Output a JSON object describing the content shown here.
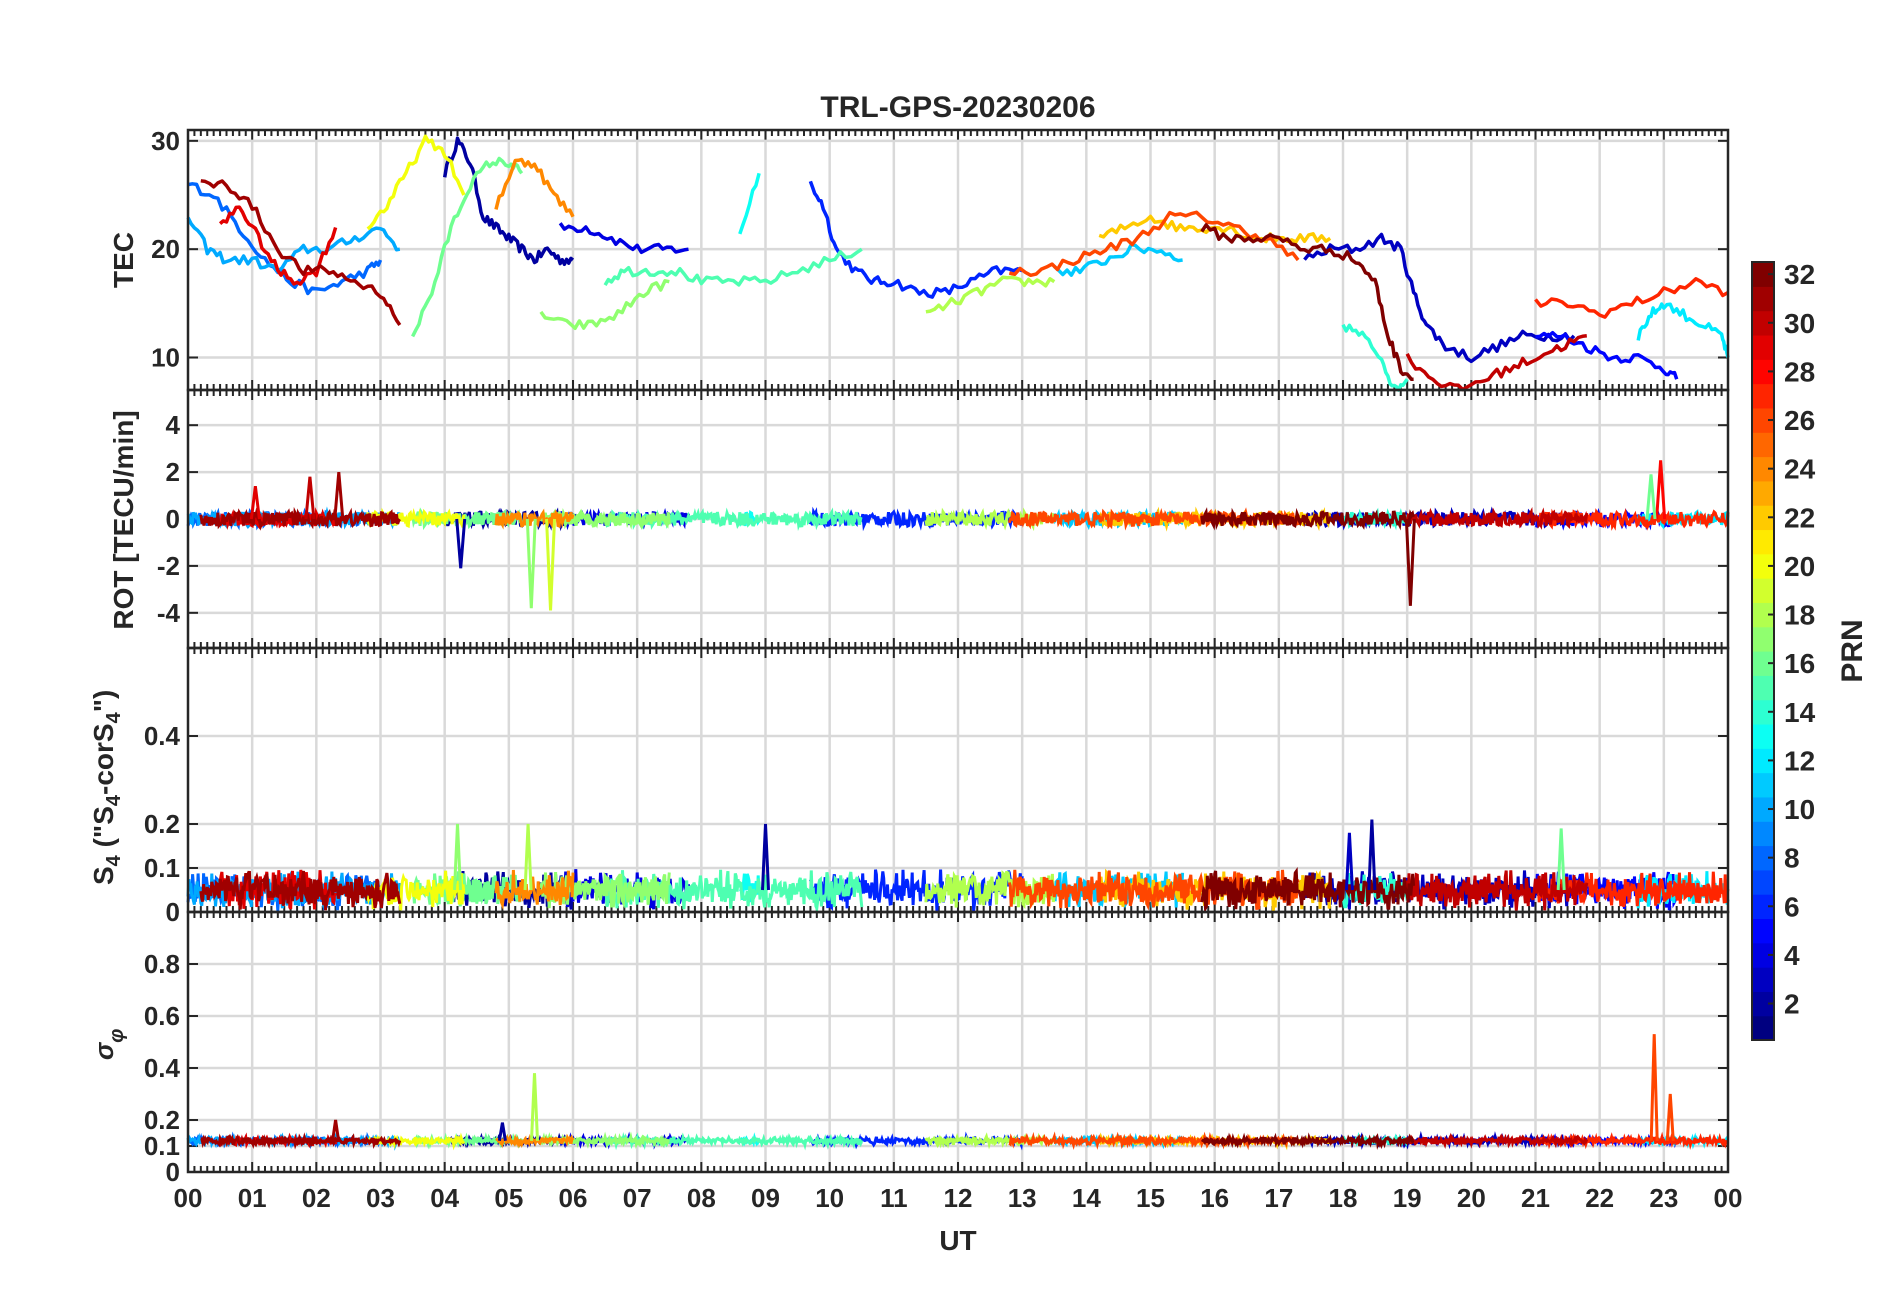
{
  "chart_data": [
    {
      "type": "line",
      "panel": "tec",
      "title": "TRL-GPS-20230206",
      "ylabel": "TEC",
      "ylim": [
        7,
        31
      ],
      "yticks": [
        10,
        20,
        30
      ],
      "xlim": [
        0,
        24
      ],
      "grid": true,
      "series": [
        {
          "prn": 2,
          "x": [
            4.0,
            4.2,
            4.4,
            4.6,
            4.8,
            5.0,
            5.2,
            5.4,
            5.6,
            5.8,
            6.0
          ],
          "y": [
            27,
            30,
            28,
            23,
            22,
            21,
            20,
            19,
            20,
            19,
            19
          ]
        },
        {
          "prn": 4,
          "x": [
            5.8,
            6.2,
            6.6,
            7.0,
            7.4,
            7.8
          ],
          "y": [
            22,
            22,
            21,
            20,
            20,
            20
          ]
        },
        {
          "prn": 6,
          "x": [
            9.7,
            9.9,
            10.1,
            10.4,
            10.7,
            11.0,
            11.4,
            11.8,
            12.2,
            12.6,
            13.0
          ],
          "y": [
            26,
            24,
            20,
            18,
            17,
            17,
            16,
            16,
            17,
            18,
            18
          ]
        },
        {
          "prn": 8,
          "x": [
            0.0,
            0.4,
            0.8,
            1.2,
            1.6,
            2.0,
            2.4,
            2.8,
            3.0
          ],
          "y": [
            26,
            25,
            22,
            19,
            17,
            16,
            17,
            18,
            19
          ]
        },
        {
          "prn": 3,
          "x": [
            17.4,
            17.8,
            18.2,
            18.6,
            18.9,
            19.1,
            19.3,
            19.6,
            20.0,
            20.4,
            20.8,
            21.2,
            21.6
          ],
          "y": [
            19,
            20,
            20,
            21,
            20,
            16,
            13,
            11,
            10,
            11,
            12,
            12,
            12
          ]
        },
        {
          "prn": 5,
          "x": [
            21.0,
            21.4,
            21.8,
            22.2,
            22.6,
            23.0,
            23.2
          ],
          "y": [
            12,
            12,
            11,
            10,
            10,
            9,
            8
          ]
        },
        {
          "prn": 10,
          "x": [
            0.0,
            0.3,
            0.6,
            1.0,
            1.4,
            1.8,
            2.2,
            2.6,
            3.0,
            3.3
          ],
          "y": [
            23,
            20,
            19,
            19,
            18,
            20,
            20,
            21,
            22,
            20
          ]
        },
        {
          "prn": 11,
          "x": [
            13.5,
            13.9,
            14.3,
            14.7,
            15.1,
            15.5
          ],
          "y": [
            18,
            18,
            19,
            20,
            20,
            19
          ]
        },
        {
          "prn": 12,
          "x": [
            22.6,
            22.8,
            23.0,
            23.3,
            23.6,
            23.9,
            24.0
          ],
          "y": [
            12,
            14,
            15,
            14,
            13,
            12,
            10
          ]
        },
        {
          "prn": 13,
          "x": [
            8.6,
            8.9
          ],
          "y": [
            21,
            27
          ]
        },
        {
          "prn": 14,
          "x": [
            18.0,
            18.3,
            18.6,
            18.8,
            19.0
          ],
          "y": [
            13,
            12,
            10,
            7,
            8
          ]
        },
        {
          "prn": 15,
          "x": [
            6.5,
            6.8,
            7.2,
            7.6,
            8.0,
            8.5,
            9.0,
            9.5,
            10.0,
            10.5
          ],
          "y": [
            17,
            18,
            18,
            18,
            17,
            17,
            17,
            18,
            19,
            20
          ]
        },
        {
          "prn": 16,
          "x": [
            3.5,
            3.8,
            4.1,
            4.4,
            4.7,
            5.0,
            5.2
          ],
          "y": [
            12,
            16,
            22,
            26,
            28,
            28,
            27
          ]
        },
        {
          "prn": 17,
          "x": [
            5.5,
            5.9,
            6.3,
            6.7,
            7.1,
            7.5
          ],
          "y": [
            14,
            13,
            13,
            14,
            16,
            17
          ]
        },
        {
          "prn": 18,
          "x": [
            11.5,
            11.9,
            12.3,
            12.7,
            13.1,
            13.5
          ],
          "y": [
            14,
            15,
            16,
            17,
            17,
            17
          ]
        },
        {
          "prn": 20,
          "x": [
            2.8,
            3.1,
            3.4,
            3.7,
            4.0,
            4.3
          ],
          "y": [
            22,
            24,
            27,
            30,
            29,
            25
          ]
        },
        {
          "prn": 22,
          "x": [
            14.2,
            14.6,
            15.0,
            15.4,
            15.8,
            16.2,
            16.6,
            17.0,
            17.4,
            17.8
          ],
          "y": [
            21,
            22,
            23,
            22,
            22,
            22,
            21,
            21,
            21,
            21
          ]
        },
        {
          "prn": 24,
          "x": [
            4.8,
            5.1,
            5.4,
            5.7,
            6.0
          ],
          "y": [
            24,
            28,
            28,
            25,
            23
          ]
        },
        {
          "prn": 26,
          "x": [
            12.8,
            13.3,
            13.8,
            14.3,
            14.8,
            15.3,
            15.8,
            16.3,
            16.8,
            17.3
          ],
          "y": [
            18,
            18,
            19,
            20,
            21,
            23,
            23,
            22,
            21,
            19
          ]
        },
        {
          "prn": 27,
          "x": [
            21.0,
            21.5,
            22.0,
            22.5,
            23.0,
            23.5,
            24.0
          ],
          "y": [
            15,
            15,
            14,
            15,
            16,
            17,
            16
          ]
        },
        {
          "prn": 29,
          "x": [
            0.5,
            0.8,
            1.1,
            1.4,
            1.7,
            2.0,
            2.3
          ],
          "y": [
            22,
            24,
            21,
            18,
            17,
            18,
            22
          ]
        },
        {
          "prn": 30,
          "x": [
            19.0,
            19.4,
            19.8,
            20.2,
            20.6,
            21.0,
            21.4,
            21.8
          ],
          "y": [
            10,
            8,
            7,
            8,
            9,
            10,
            11,
            12
          ]
        },
        {
          "prn": 31,
          "x": [
            0.2,
            0.6,
            1.0,
            1.4,
            1.8,
            2.2,
            2.6,
            3.0,
            3.3
          ],
          "y": [
            26,
            26,
            24,
            20,
            18,
            18,
            17,
            16,
            13
          ]
        },
        {
          "prn": 32,
          "x": [
            15.8,
            16.2,
            16.6,
            17.0,
            17.4,
            17.8,
            18.2,
            18.5,
            18.7,
            18.9,
            19.1
          ],
          "y": [
            22,
            21,
            21,
            21,
            20,
            20,
            19,
            17,
            12,
            9,
            8
          ]
        }
      ]
    },
    {
      "type": "line",
      "panel": "rot",
      "ylabel": "ROT [TECU/min]",
      "ylim": [
        -5.5,
        5.5
      ],
      "yticks": [
        -4,
        -2,
        0,
        2,
        4
      ],
      "xlim": [
        0,
        24
      ],
      "grid": true,
      "noise_level": 0.3,
      "spikes": [
        {
          "prn": 30,
          "x": 1.9,
          "y": 1.8
        },
        {
          "prn": 31,
          "x": 2.35,
          "y": 2.0
        },
        {
          "prn": 17,
          "x": 5.35,
          "y": -3.8
        },
        {
          "prn": 19,
          "x": 5.65,
          "y": -3.9
        },
        {
          "prn": 2,
          "x": 4.25,
          "y": -2.1
        },
        {
          "prn": 32,
          "x": 19.05,
          "y": -3.7
        },
        {
          "prn": 28,
          "x": 22.95,
          "y": 2.5
        },
        {
          "prn": 16,
          "x": 22.8,
          "y": 1.9
        },
        {
          "prn": 29,
          "x": 1.05,
          "y": 1.4
        }
      ]
    },
    {
      "type": "line",
      "panel": "s4",
      "ylabel": "S4 (\"S4-corS4\")",
      "ylim": [
        0,
        0.6
      ],
      "yticks": [
        0,
        0.1,
        0.2,
        0.4
      ],
      "xlim": [
        0,
        24
      ],
      "grid": true,
      "baseline": 0.05,
      "spikes": [
        {
          "prn": 17,
          "x": 4.2,
          "y": 0.2
        },
        {
          "prn": 18,
          "x": 5.3,
          "y": 0.2
        },
        {
          "prn": 2,
          "x": 9.0,
          "y": 0.2
        },
        {
          "prn": 2,
          "x": 18.45,
          "y": 0.21
        },
        {
          "prn": 3,
          "x": 18.1,
          "y": 0.18
        },
        {
          "prn": 16,
          "x": 21.4,
          "y": 0.19
        }
      ]
    },
    {
      "type": "line",
      "panel": "sigma",
      "ylabel": "σφ",
      "ylim": [
        0,
        1
      ],
      "yticks": [
        0,
        0.1,
        0.2,
        0.4,
        0.6,
        0.8
      ],
      "xlim": [
        0,
        24
      ],
      "grid": true,
      "baseline": 0.12,
      "spikes": [
        {
          "prn": 18,
          "x": 5.4,
          "y": 0.38
        },
        {
          "prn": 26,
          "x": 22.85,
          "y": 0.53
        },
        {
          "prn": 26,
          "x": 23.1,
          "y": 0.3
        },
        {
          "prn": 31,
          "x": 2.3,
          "y": 0.2
        },
        {
          "prn": 2,
          "x": 4.9,
          "y": 0.19
        }
      ]
    }
  ],
  "xaxis": {
    "label": "UT",
    "tick_labels": [
      "00",
      "01",
      "02",
      "03",
      "04",
      "05",
      "06",
      "07",
      "08",
      "09",
      "10",
      "11",
      "12",
      "13",
      "14",
      "15",
      "16",
      "17",
      "18",
      "19",
      "20",
      "21",
      "22",
      "23",
      "00"
    ]
  },
  "colorbar": {
    "label": "PRN",
    "min": 1,
    "max": 32,
    "colormap": "jet",
    "tick_labels": [
      "2",
      "4",
      "6",
      "8",
      "10",
      "12",
      "14",
      "16",
      "18",
      "20",
      "22",
      "24",
      "26",
      "28",
      "30",
      "32"
    ],
    "tick_values": [
      2,
      4,
      6,
      8,
      10,
      12,
      14,
      16,
      18,
      20,
      22,
      24,
      26,
      28,
      30,
      32
    ]
  }
}
